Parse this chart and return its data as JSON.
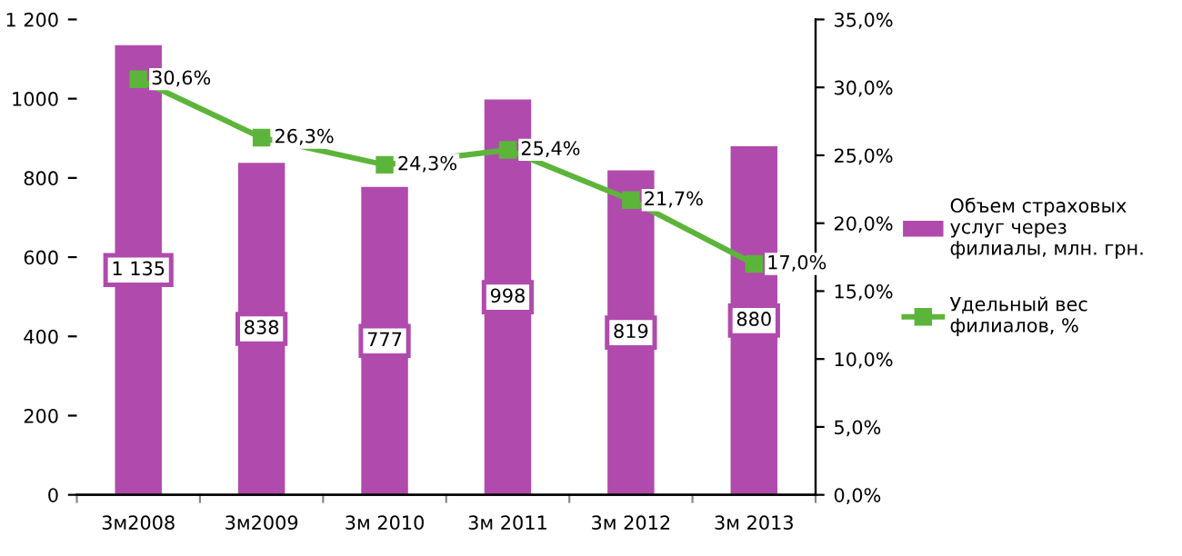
{
  "chart_data": {
    "type": "bar",
    "categories": [
      "3м2008",
      "3м2009",
      "3м 2010",
      "3м 2011",
      "3м 2012",
      "3м 2013"
    ],
    "series": [
      {
        "name": "Объем страховых услуг через филиалы, млн. грн.",
        "color": "#b04aad",
        "values": [
          1135,
          838,
          777,
          998,
          819,
          880
        ],
        "value_labels": [
          "1 135",
          "838",
          "777",
          "998",
          "819",
          "880"
        ]
      },
      {
        "name": "Удельный вес филиалов, %",
        "type": "line",
        "axis": "y2",
        "color": "#5cb53a",
        "marker": "square",
        "values": [
          30.6,
          26.3,
          24.3,
          25.4,
          21.7,
          17.0
        ],
        "value_labels": [
          "30,6%",
          "26,3%",
          "24,3%",
          "25,4%",
          "21,7%",
          "17,0%"
        ]
      }
    ],
    "ylim": [
      0,
      1200
    ],
    "yticks": [
      0,
      200,
      400,
      600,
      800,
      1000,
      {
        "value": 1200,
        "label": "1 200"
      }
    ],
    "y2lim": [
      0,
      35
    ],
    "y2ticks": [
      {
        "value": 0,
        "label": "0,0%"
      },
      {
        "value": 5,
        "label": "5,0%"
      },
      {
        "value": 10,
        "label": "10,0%"
      },
      {
        "value": 15,
        "label": "15,0%"
      },
      {
        "value": 20,
        "label": "20,0%"
      },
      {
        "value": 25,
        "label": "25,0%"
      },
      {
        "value": 30,
        "label": "30,0%"
      },
      {
        "value": 35,
        "label": "35,0%"
      }
    ],
    "grid": false,
    "legend": "right"
  }
}
